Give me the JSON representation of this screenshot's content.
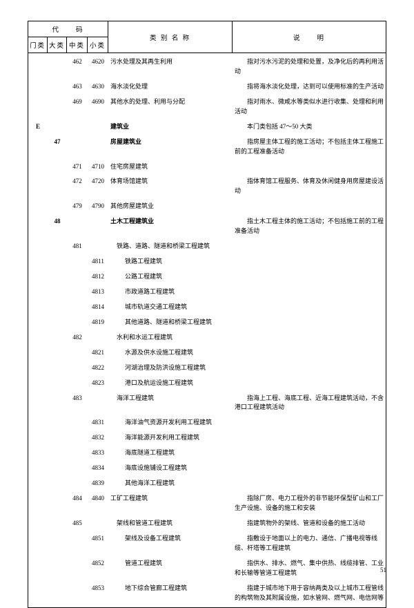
{
  "headers": {
    "code_group": "代　　码",
    "men": "门类",
    "da": "大类",
    "zhong": "中类",
    "xiao": "小类",
    "name": "类 别 名 称",
    "desc": "说　　明"
  },
  "rows": [
    {
      "men": "",
      "da": "",
      "zhong": "462",
      "xiao": "4620",
      "name": "污水处理及其再生利用",
      "name_bold": false,
      "indent": 0,
      "desc": "　　指对污水污泥的处理和处置，及净化后的再利用活动"
    },
    {
      "men": "",
      "da": "",
      "zhong": "463",
      "xiao": "4630",
      "name": "海水淡化处理",
      "name_bold": false,
      "indent": 0,
      "desc": "　　指将海水淡化处理，达到可以使用标准的生产活动"
    },
    {
      "men": "",
      "da": "",
      "zhong": "469",
      "xiao": "4690",
      "name": "其他水的处理、利用与分配",
      "name_bold": false,
      "indent": 0,
      "desc": "　　指对雨水、微咸水等类似水进行收集、处理和利用活动"
    },
    {
      "men": "E",
      "da": "",
      "zhong": "",
      "xiao": "",
      "name": "建筑业",
      "name_bold": true,
      "indent": 0,
      "desc": "　　本门类包括 47～50 大类"
    },
    {
      "men": "",
      "da": "47",
      "zhong": "",
      "xiao": "",
      "name": "房屋建筑业",
      "name_bold": true,
      "indent": 0,
      "desc": "　　指房屋主体工程的施工活动；不包括主体工程施工前的工程准备活动"
    },
    {
      "men": "",
      "da": "",
      "zhong": "471",
      "xiao": "4710",
      "name": "住宅房屋建筑",
      "name_bold": false,
      "indent": 0,
      "desc": ""
    },
    {
      "men": "",
      "da": "",
      "zhong": "472",
      "xiao": "4720",
      "name": "体育场馆建筑",
      "name_bold": false,
      "indent": 0,
      "desc": "　　指体育馆工程服务、体育及休闲健身用房屋建设活动"
    },
    {
      "men": "",
      "da": "",
      "zhong": "479",
      "xiao": "4790",
      "name": "其他房屋建筑业",
      "name_bold": false,
      "indent": 0,
      "desc": ""
    },
    {
      "men": "",
      "da": "48",
      "zhong": "",
      "xiao": "",
      "name": "土木工程建筑业",
      "name_bold": true,
      "indent": 0,
      "desc": "　　指土木工程主体的施工活动；不包括施工前的工程准备活动"
    },
    {
      "men": "",
      "da": "",
      "zhong": "481",
      "xiao": "",
      "name": "铁路、道路、隧道和桥梁工程建筑",
      "name_bold": false,
      "indent": 1,
      "desc": ""
    },
    {
      "men": "",
      "da": "",
      "zhong": "",
      "xiao": "4811",
      "name": "铁路工程建筑",
      "name_bold": false,
      "indent": 2,
      "desc": ""
    },
    {
      "men": "",
      "da": "",
      "zhong": "",
      "xiao": "4812",
      "name": "公路工程建筑",
      "name_bold": false,
      "indent": 2,
      "desc": ""
    },
    {
      "men": "",
      "da": "",
      "zhong": "",
      "xiao": "4813",
      "name": "市政道路工程建筑",
      "name_bold": false,
      "indent": 2,
      "desc": ""
    },
    {
      "men": "",
      "da": "",
      "zhong": "",
      "xiao": "4814",
      "name": "城市轨道交通工程建筑",
      "name_bold": false,
      "indent": 2,
      "desc": ""
    },
    {
      "men": "",
      "da": "",
      "zhong": "",
      "xiao": "4819",
      "name": "其他道路、隧道和桥梁工程建筑",
      "name_bold": false,
      "indent": 2,
      "desc": ""
    },
    {
      "men": "",
      "da": "",
      "zhong": "482",
      "xiao": "",
      "name": "水利和水运工程建筑",
      "name_bold": false,
      "indent": 1,
      "desc": ""
    },
    {
      "men": "",
      "da": "",
      "zhong": "",
      "xiao": "4821",
      "name": "水源及供水设施工程建筑",
      "name_bold": false,
      "indent": 2,
      "desc": ""
    },
    {
      "men": "",
      "da": "",
      "zhong": "",
      "xiao": "4822",
      "name": "河湖治理及防洪设施工程建筑",
      "name_bold": false,
      "indent": 2,
      "desc": ""
    },
    {
      "men": "",
      "da": "",
      "zhong": "",
      "xiao": "4823",
      "name": "港口及航运设施工程建筑",
      "name_bold": false,
      "indent": 2,
      "desc": ""
    },
    {
      "men": "",
      "da": "",
      "zhong": "483",
      "xiao": "",
      "name": "海洋工程建筑",
      "name_bold": false,
      "indent": 1,
      "desc": "　　指海上工程、海底工程、近海工程建筑活动，不含港口工程建筑活动"
    },
    {
      "men": "",
      "da": "",
      "zhong": "",
      "xiao": "4831",
      "name": "海洋油气资源开发利用工程建筑",
      "name_bold": false,
      "indent": 2,
      "desc": ""
    },
    {
      "men": "",
      "da": "",
      "zhong": "",
      "xiao": "4832",
      "name": "海洋能源开发利用工程建筑",
      "name_bold": false,
      "indent": 2,
      "desc": ""
    },
    {
      "men": "",
      "da": "",
      "zhong": "",
      "xiao": "4833",
      "name": "海底隧道工程建筑",
      "name_bold": false,
      "indent": 2,
      "desc": ""
    },
    {
      "men": "",
      "da": "",
      "zhong": "",
      "xiao": "4834",
      "name": "海底设施铺设工程建筑",
      "name_bold": false,
      "indent": 2,
      "desc": ""
    },
    {
      "men": "",
      "da": "",
      "zhong": "",
      "xiao": "4839",
      "name": "其他海洋工程建筑",
      "name_bold": false,
      "indent": 2,
      "desc": ""
    },
    {
      "men": "",
      "da": "",
      "zhong": "484",
      "xiao": "4840",
      "name": "工矿工程建筑",
      "name_bold": false,
      "indent": 0,
      "desc": "　　指除厂房、电力工程外的非节能环保型矿山和工厂生产设施、设备的施工和安装"
    },
    {
      "men": "",
      "da": "",
      "zhong": "485",
      "xiao": "",
      "name": "架线和管道工程建筑",
      "name_bold": false,
      "indent": 1,
      "desc": "　　指建筑物外的架线、管道和设备的施工活动"
    },
    {
      "men": "",
      "da": "",
      "zhong": "",
      "xiao": "4851",
      "name": "架线及设备工程建筑",
      "name_bold": false,
      "indent": 2,
      "desc": "　　指敷设于地面以上的电力、通信、广播电视等线缆、杆塔等工程建筑"
    },
    {
      "men": "",
      "da": "",
      "zhong": "",
      "xiao": "4852",
      "name": "管道工程建筑",
      "name_bold": false,
      "indent": 2,
      "desc": "　　指供水、排水、燃气、集中供热、线缆排管、工业和长输等管道工程建筑"
    },
    {
      "men": "",
      "da": "",
      "zhong": "",
      "xiao": "4853",
      "name": "地下综合管廊工程建筑",
      "name_bold": false,
      "indent": 2,
      "desc": "　　指建于城市地下用于容纳两类及以上城市工程管线的构筑物及其附属设施，如水管网、燃气网、电信网等"
    }
  ],
  "page_number": "51"
}
